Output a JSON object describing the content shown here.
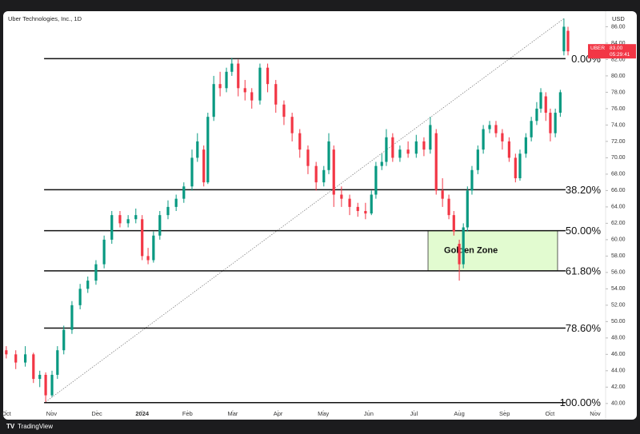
{
  "chart_data": {
    "type": "candlestick",
    "title": "Uber Technologies, Inc., 1D",
    "currency": "USD",
    "footer": "TradingView",
    "up_color": "#089981",
    "down_color": "#f23645",
    "xlim": [
      -0.05,
      13.23
    ],
    "xticks": [
      {
        "value": 0,
        "label": "Oct"
      },
      {
        "value": 1,
        "label": "Nov"
      },
      {
        "value": 2,
        "label": "Dec"
      },
      {
        "value": 3,
        "label": "2024"
      },
      {
        "value": 4,
        "label": "Feb"
      },
      {
        "value": 5,
        "label": "Mar"
      },
      {
        "value": 6,
        "label": "Apr"
      },
      {
        "value": 7,
        "label": "May"
      },
      {
        "value": 8,
        "label": "Jun"
      },
      {
        "value": 9,
        "label": "Jul"
      },
      {
        "value": 10,
        "label": "Aug"
      },
      {
        "value": 11,
        "label": "Sep"
      },
      {
        "value": 12,
        "label": "Oct"
      },
      {
        "value": 13,
        "label": "Nov"
      }
    ],
    "ylim": [
      39.3,
      87.8
    ],
    "yticks": [
      {
        "value": 40,
        "label": "40.00"
      },
      {
        "value": 42,
        "label": "42.00"
      },
      {
        "value": 44,
        "label": "44.00"
      },
      {
        "value": 46,
        "label": "46.00"
      },
      {
        "value": 48,
        "label": "48.00"
      },
      {
        "value": 50,
        "label": "50.00"
      },
      {
        "value": 52,
        "label": "52.00"
      },
      {
        "value": 54,
        "label": "54.00"
      },
      {
        "value": 56,
        "label": "56.00"
      },
      {
        "value": 58,
        "label": "58.00"
      },
      {
        "value": 60,
        "label": "60.00"
      },
      {
        "value": 62,
        "label": "62.00"
      },
      {
        "value": 64,
        "label": "64.00"
      },
      {
        "value": 66,
        "label": "66.00"
      },
      {
        "value": 68,
        "label": "68.00"
      },
      {
        "value": 70,
        "label": "70.00"
      },
      {
        "value": 72,
        "label": "72.00"
      },
      {
        "value": 74,
        "label": "74.00"
      },
      {
        "value": 76,
        "label": "76.00"
      },
      {
        "value": 78,
        "label": "78.00"
      },
      {
        "value": 80,
        "label": "80.00"
      },
      {
        "value": 82,
        "label": "82.00"
      },
      {
        "value": 84,
        "label": "84.00"
      },
      {
        "value": 86,
        "label": "86.00"
      }
    ],
    "x": [
      0.0,
      0.21,
      0.42,
      0.6,
      0.74,
      0.87,
      1.01,
      1.13,
      1.27,
      1.45,
      1.63,
      1.8,
      1.98,
      2.16,
      2.33,
      2.51,
      2.69,
      2.86,
      3.0,
      3.13,
      3.25,
      3.39,
      3.57,
      3.75,
      3.92,
      4.1,
      4.22,
      4.36,
      4.45,
      4.58,
      4.72,
      4.86,
      4.98,
      5.12,
      5.27,
      5.42,
      5.6,
      5.77,
      5.95,
      6.13,
      6.31,
      6.48,
      6.66,
      6.84,
      7.01,
      7.12,
      7.23,
      7.4,
      7.58,
      7.76,
      7.93,
      8.06,
      8.16,
      8.29,
      8.39,
      8.53,
      8.69,
      8.87,
      9.05,
      9.22,
      9.36,
      9.49,
      9.63,
      9.77,
      9.88,
      10.0,
      10.09,
      10.18,
      10.28,
      10.41,
      10.53,
      10.67,
      10.81,
      10.95,
      11.1,
      11.24,
      11.34,
      11.47,
      11.59,
      11.71,
      11.8,
      11.91,
      12.01,
      12.12,
      12.23,
      12.31,
      12.4
    ],
    "open": [
      46.5,
      46,
      45,
      46,
      43,
      43.5,
      41,
      43.5,
      46.5,
      49,
      52,
      54,
      55,
      57,
      60,
      63,
      62,
      62.5,
      62.5,
      58,
      57.5,
      60.5,
      63,
      64,
      65,
      66.5,
      70,
      71,
      67,
      75,
      79,
      78.5,
      80.5,
      81.5,
      78.5,
      78,
      77,
      81,
      79,
      76.5,
      75,
      73,
      71,
      69,
      67,
      68.5,
      71,
      65.5,
      65,
      64,
      63.5,
      63.2,
      65.5,
      69,
      69.5,
      72.5,
      70,
      71,
      70.5,
      72,
      71,
      73,
      66,
      65,
      63,
      59.5,
      57,
      61.5,
      66,
      68.5,
      71,
      73.5,
      74,
      73,
      72,
      70,
      67.5,
      70.5,
      72.5,
      74.5,
      76,
      77.5,
      75.5,
      73,
      75.5,
      83,
      85.5
    ],
    "high": [
      47,
      46.5,
      47,
      46.2,
      44,
      43.8,
      44,
      47,
      49.5,
      52.5,
      54.6,
      55.5,
      57.5,
      60.5,
      63.5,
      63.5,
      63,
      63.8,
      63,
      59,
      61,
      63.5,
      64.8,
      65.5,
      67,
      71,
      73,
      71.5,
      75.5,
      80,
      80.5,
      81,
      82.2,
      82,
      79.5,
      78.5,
      81.5,
      81.5,
      79.5,
      77,
      75.5,
      73.5,
      71.5,
      69.5,
      69,
      73,
      71.5,
      66.5,
      65.5,
      64.5,
      64.5,
      66,
      69.5,
      70.5,
      73.5,
      73,
      71.5,
      72,
      72.8,
      72.5,
      75,
      73.5,
      67.5,
      65.5,
      63.5,
      60,
      62,
      66.5,
      69,
      71.5,
      74,
      74.5,
      74.5,
      73.5,
      72.5,
      70.5,
      71,
      73,
      75,
      76.8,
      78.5,
      78,
      76,
      76,
      78.3,
      87,
      86
    ],
    "low": [
      45.5,
      44.2,
      44.5,
      42.5,
      42,
      40.2,
      40.8,
      43,
      46,
      48.5,
      51.5,
      53.5,
      54.5,
      56.5,
      59.5,
      61.5,
      61.5,
      62,
      57.5,
      57,
      57.2,
      60,
      62.5,
      63.5,
      64.5,
      66,
      69.5,
      66.5,
      66.8,
      74.5,
      77.5,
      78,
      80,
      77.5,
      77,
      76,
      76.5,
      78,
      75.5,
      74,
      72,
      70,
      68,
      66,
      66.5,
      68,
      64,
      64,
      63,
      62.8,
      62.5,
      63,
      65,
      68.5,
      69,
      69.5,
      69.5,
      70,
      70,
      70.2,
      70.5,
      65.5,
      64,
      62.5,
      60.5,
      55,
      56.5,
      61,
      65.5,
      68,
      70.5,
      73,
      72.5,
      71,
      69.5,
      67,
      67.2,
      70,
      72,
      74,
      75.5,
      74.5,
      72,
      72.5,
      75,
      82.5,
      82.5
    ],
    "close": [
      46,
      45,
      46,
      43,
      43.5,
      41,
      43.5,
      46.5,
      49,
      52,
      54,
      55,
      57,
      60,
      63,
      62,
      62.5,
      63,
      58,
      57.5,
      60.5,
      63,
      64,
      65,
      66.5,
      70,
      72,
      67,
      75,
      79,
      78.5,
      80.5,
      81.5,
      78.5,
      78,
      77,
      81,
      79,
      76.5,
      75,
      73,
      71,
      69,
      67,
      68.5,
      72,
      65.5,
      65,
      64,
      63.5,
      63.2,
      65.5,
      69,
      69.5,
      72.5,
      70,
      71,
      70.5,
      72,
      71,
      74,
      66,
      65,
      63,
      61,
      57,
      61.5,
      66,
      68.5,
      71,
      73.5,
      74,
      73,
      72,
      70,
      67.5,
      70.5,
      72.5,
      74.5,
      76,
      78,
      75.5,
      73,
      75.5,
      78,
      86,
      83
    ],
    "levels": [
      {
        "label": "0.00%",
        "value": 82.1
      },
      {
        "label": "38.20%",
        "value": 66.1
      },
      {
        "label": "50.00%",
        "value": 61.1
      },
      {
        "label": "61.80%",
        "value": 56.2
      },
      {
        "label": "78.60%",
        "value": 49.2
      },
      {
        "label": "100.00%",
        "value": 40.1
      }
    ],
    "zone": {
      "label": "Golden Zone",
      "x": [
        9.31,
        12.17
      ],
      "from": 56.2,
      "to": 61.1,
      "color": "#e2fbd0"
    },
    "price_tag": {
      "symbol": "UBER",
      "value": 83,
      "label": "83.00",
      "countdown": "05:29:41"
    }
  }
}
